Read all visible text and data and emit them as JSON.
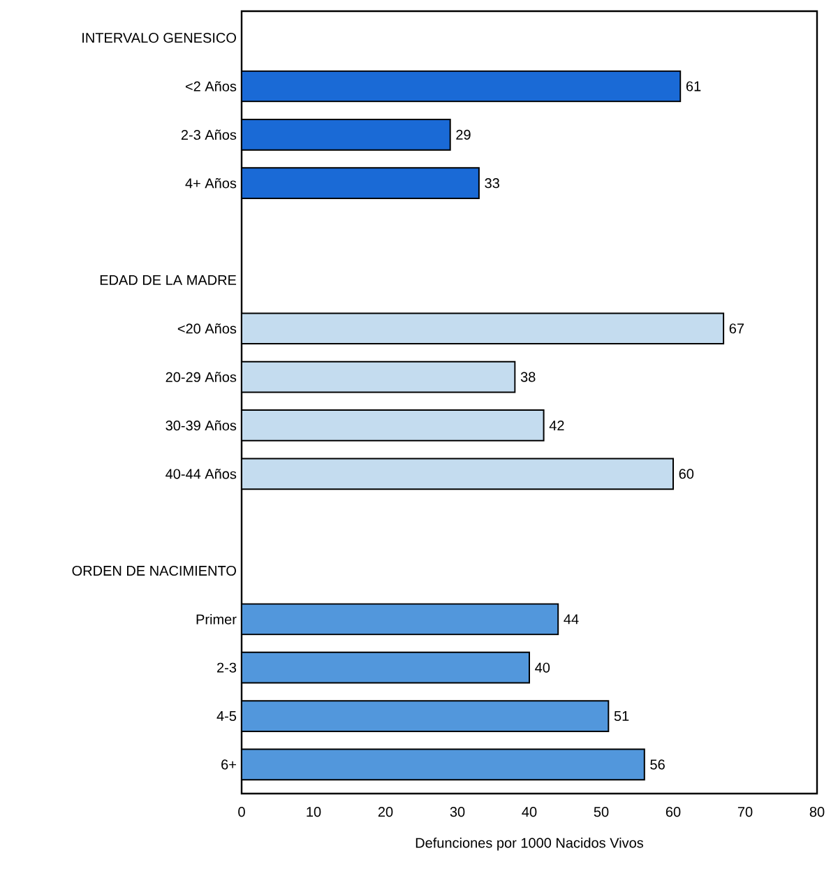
{
  "chart_data": {
    "type": "bar",
    "orientation": "horizontal",
    "xlabel": "Defunciones por 1000 Nacidos Vivos",
    "categories": [
      "INTERVALO GENESICO",
      "<2 Años",
      "2-3 Años",
      "4+ Años",
      null,
      "EDAD DE LA MADRE",
      "<20 Años",
      "20-29 Años",
      "30-39 Años",
      "40-44 Años",
      null,
      "ORDEN DE NACIMIENTO",
      "Primer",
      "2-3",
      "4-5",
      "6+"
    ],
    "values": [
      null,
      61,
      29,
      33,
      null,
      null,
      67,
      38,
      42,
      60,
      null,
      null,
      44,
      40,
      51,
      56
    ],
    "colors": [
      null,
      "#1a6ad6",
      "#1a6ad6",
      "#1a6ad6",
      null,
      null,
      "#c4dcef",
      "#c4dcef",
      "#c4dcef",
      "#c4dcef",
      null,
      null,
      "#5297dc",
      "#5297dc",
      "#5297dc",
      "#5297dc"
    ],
    "xlim": [
      0,
      80
    ],
    "xticks": [
      0,
      10,
      20,
      30,
      40,
      50,
      60,
      70,
      80
    ],
    "data_labels": true,
    "grid": false
  }
}
